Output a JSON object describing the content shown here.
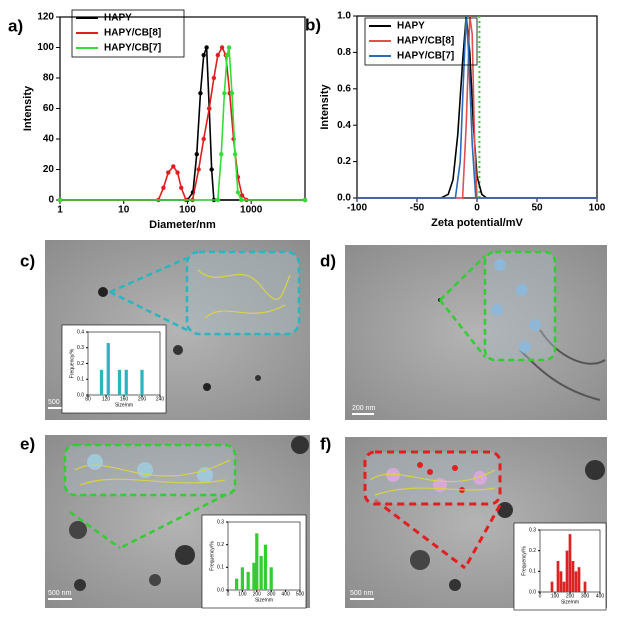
{
  "chart_data": [
    {
      "type": "line",
      "label": "a)",
      "xlabel": "Diameter/nm",
      "ylabel": "Intensity",
      "log_x": true,
      "markers": true,
      "legend": "upper left",
      "xlim": [
        1,
        7000
      ],
      "xticks": [
        1,
        10,
        100,
        1000
      ],
      "ylim": [
        0,
        120
      ],
      "yticks": [
        0,
        20,
        40,
        60,
        80,
        100,
        120
      ],
      "series": [
        {
          "name": "HAPY",
          "color": "#000000",
          "x": [
            1,
            100,
            122,
            140,
            160,
            180,
            200,
            220,
            240,
            260,
            7000
          ],
          "values": [
            0,
            0,
            5,
            30,
            70,
            95,
            100,
            60,
            20,
            0,
            0
          ]
        },
        {
          "name": "HAPY/CB[8]",
          "color": "#e01e1e",
          "x": [
            1,
            35,
            42,
            50,
            60,
            70,
            80,
            95,
            120,
            150,
            180,
            220,
            260,
            300,
            350,
            400,
            460,
            530,
            620,
            720,
            850,
            7000
          ],
          "values": [
            0,
            0,
            8,
            18,
            22,
            18,
            8,
            0,
            0,
            20,
            40,
            60,
            80,
            95,
            100,
            95,
            70,
            40,
            15,
            3,
            0,
            0
          ]
        },
        {
          "name": "HAPY/CB[7]",
          "color": "#33dd33",
          "x": [
            1,
            300,
            340,
            380,
            420,
            450,
            500,
            560,
            620,
            700,
            7000
          ],
          "values": [
            0,
            0,
            30,
            70,
            95,
            100,
            70,
            30,
            5,
            0,
            0
          ]
        }
      ]
    },
    {
      "type": "line",
      "label": "b)",
      "xlabel": "Zeta potential/mV",
      "ylabel": "Intensity",
      "markers": false,
      "legend": "upper left",
      "xlim": [
        -100,
        100
      ],
      "xticks": [
        -100,
        -50,
        0,
        50,
        100
      ],
      "ylim": [
        0,
        1.0
      ],
      "yticks": [
        {
          "value": 0,
          "label": "0.0"
        },
        0.2,
        0.4,
        0.6,
        0.8,
        {
          "value": 1.0,
          "label": "1.0"
        }
      ],
      "vline": {
        "x": 2,
        "color": "#33cc33"
      },
      "series": [
        {
          "name": "HAPY",
          "color": "#000000",
          "x": [
            -100,
            -30,
            -24,
            -20,
            -16,
            -12,
            -9,
            -6,
            -3,
            0,
            4,
            8,
            100
          ],
          "values": [
            0,
            0,
            0.02,
            0.1,
            0.35,
            0.75,
            1.0,
            0.8,
            0.4,
            0.12,
            0.02,
            0,
            0
          ]
        },
        {
          "name": "HAPY/CB[8]",
          "color": "#e05050",
          "x": [
            -100,
            -12,
            -9,
            -6,
            -4,
            -2,
            0,
            100
          ],
          "values": [
            0,
            0,
            0.4,
            1.0,
            0.9,
            0.3,
            0,
            0
          ]
        },
        {
          "name": "HAPY/CB[7]",
          "color": "#2a6ab8",
          "x": [
            -100,
            -18,
            -14,
            -11,
            -9,
            -7,
            -4,
            -1,
            100
          ],
          "values": [
            0,
            0,
            0.2,
            0.7,
            1.0,
            0.8,
            0.3,
            0,
            0
          ]
        }
      ]
    },
    {
      "type": "bar",
      "xlabel": "Size/nm",
      "ylabel": "Frequency/%",
      "color": "#2ab5c0",
      "xlim": [
        80,
        240
      ],
      "xticks": [
        80,
        120,
        160,
        200,
        240
      ],
      "ylim": [
        0,
        0.4
      ],
      "yticks": [
        {
          "value": 0,
          "label": "0.0"
        },
        0.1,
        0.2,
        0.3,
        0.4
      ],
      "x": [
        110,
        125,
        150,
        165,
        200
      ],
      "values": [
        0.16,
        0.33,
        0.16,
        0.16,
        0.16
      ]
    },
    {
      "type": "bar",
      "xlabel": "Size/nm",
      "ylabel": "Frequency/%",
      "color": "#33cc33",
      "xlim": [
        0,
        500
      ],
      "xticks": [
        0,
        100,
        200,
        300,
        400,
        500
      ],
      "ylim": [
        0,
        0.3
      ],
      "yticks": [
        {
          "value": 0,
          "label": "0.0"
        },
        0.1,
        0.2,
        0.3
      ],
      "x": [
        60,
        100,
        140,
        180,
        200,
        230,
        260,
        300
      ],
      "values": [
        0.05,
        0.1,
        0.08,
        0.12,
        0.25,
        0.15,
        0.2,
        0.1
      ]
    },
    {
      "type": "bar",
      "xlabel": "Size/nm",
      "ylabel": "Frequency/%",
      "color": "#dd2222",
      "xlim": [
        0,
        400
      ],
      "xticks": [
        0,
        100,
        200,
        300,
        400
      ],
      "ylim": [
        0,
        0.3
      ],
      "yticks": [
        {
          "value": 0,
          "label": "0.0"
        },
        0.1,
        0.2,
        0.3
      ],
      "x": [
        80,
        120,
        140,
        160,
        180,
        200,
        220,
        240,
        260,
        300
      ],
      "values": [
        0.05,
        0.15,
        0.1,
        0.05,
        0.2,
        0.28,
        0.15,
        0.1,
        0.12,
        0.05
      ]
    }
  ],
  "images": [
    {
      "label": "c)",
      "scale_bar": "500 nm"
    },
    {
      "label": "d)",
      "scale_bar": "200 nm"
    },
    {
      "label": "e)",
      "scale_bar": "500 nm"
    },
    {
      "label": "f)",
      "scale_bar": "500 nm"
    }
  ]
}
